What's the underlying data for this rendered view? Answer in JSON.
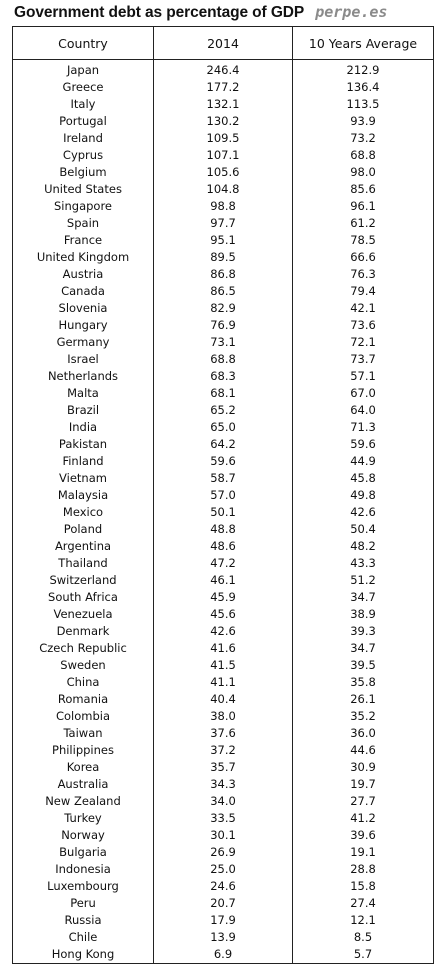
{
  "header": {
    "title": "Government debt as percentage of GDP",
    "brand": "perpe.es"
  },
  "chart_data": {
    "type": "table",
    "columns": [
      "Country",
      "2014",
      "10 Years Average"
    ],
    "rows": [
      [
        "Japan",
        "246.4",
        "212.9"
      ],
      [
        "Greece",
        "177.2",
        "136.4"
      ],
      [
        "Italy",
        "132.1",
        "113.5"
      ],
      [
        "Portugal",
        "130.2",
        "93.9"
      ],
      [
        "Ireland",
        "109.5",
        "73.2"
      ],
      [
        "Cyprus",
        "107.1",
        "68.8"
      ],
      [
        "Belgium",
        "105.6",
        "98.0"
      ],
      [
        "United States",
        "104.8",
        "85.6"
      ],
      [
        "Singapore",
        "98.8",
        "96.1"
      ],
      [
        "Spain",
        "97.7",
        "61.2"
      ],
      [
        "France",
        "95.1",
        "78.5"
      ],
      [
        "United Kingdom",
        "89.5",
        "66.6"
      ],
      [
        "Austria",
        "86.8",
        "76.3"
      ],
      [
        "Canada",
        "86.5",
        "79.4"
      ],
      [
        "Slovenia",
        "82.9",
        "42.1"
      ],
      [
        "Hungary",
        "76.9",
        "73.6"
      ],
      [
        "Germany",
        "73.1",
        "72.1"
      ],
      [
        "Israel",
        "68.8",
        "73.7"
      ],
      [
        "Netherlands",
        "68.3",
        "57.1"
      ],
      [
        "Malta",
        "68.1",
        "67.0"
      ],
      [
        "Brazil",
        "65.2",
        "64.0"
      ],
      [
        "India",
        "65.0",
        "71.3"
      ],
      [
        "Pakistan",
        "64.2",
        "59.6"
      ],
      [
        "Finland",
        "59.6",
        "44.9"
      ],
      [
        "Vietnam",
        "58.7",
        "45.8"
      ],
      [
        "Malaysia",
        "57.0",
        "49.8"
      ],
      [
        "Mexico",
        "50.1",
        "42.6"
      ],
      [
        "Poland",
        "48.8",
        "50.4"
      ],
      [
        "Argentina",
        "48.6",
        "48.2"
      ],
      [
        "Thailand",
        "47.2",
        "43.3"
      ],
      [
        "Switzerland",
        "46.1",
        "51.2"
      ],
      [
        "South Africa",
        "45.9",
        "34.7"
      ],
      [
        "Venezuela",
        "45.6",
        "38.9"
      ],
      [
        "Denmark",
        "42.6",
        "39.3"
      ],
      [
        "Czech Republic",
        "41.6",
        "34.7"
      ],
      [
        "Sweden",
        "41.5",
        "39.5"
      ],
      [
        "China",
        "41.1",
        "35.8"
      ],
      [
        "Romania",
        "40.4",
        "26.1"
      ],
      [
        "Colombia",
        "38.0",
        "35.2"
      ],
      [
        "Taiwan",
        "37.6",
        "36.0"
      ],
      [
        "Philippines",
        "37.2",
        "44.6"
      ],
      [
        "Korea",
        "35.7",
        "30.9"
      ],
      [
        "Australia",
        "34.3",
        "19.7"
      ],
      [
        "New Zealand",
        "34.0",
        "27.7"
      ],
      [
        "Turkey",
        "33.5",
        "41.2"
      ],
      [
        "Norway",
        "30.1",
        "39.6"
      ],
      [
        "Bulgaria",
        "26.9",
        "19.1"
      ],
      [
        "Indonesia",
        "25.0",
        "28.8"
      ],
      [
        "Luxembourg",
        "24.6",
        "15.8"
      ],
      [
        "Peru",
        "20.7",
        "27.4"
      ],
      [
        "Russia",
        "17.9",
        "12.1"
      ],
      [
        "Chile",
        "13.9",
        "8.5"
      ],
      [
        "Hong Kong",
        "6.9",
        "5.7"
      ]
    ]
  }
}
